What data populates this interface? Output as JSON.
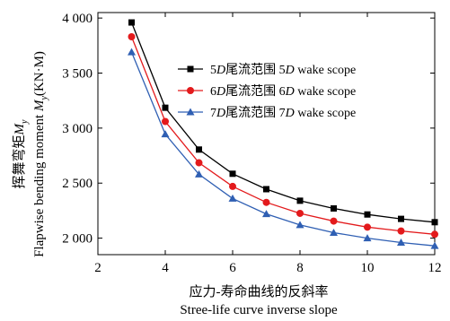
{
  "chart_data": {
    "type": "line",
    "xlabel_cn": "应力-寿命曲线的反斜率",
    "xlabel_en": "Stree-life curve inverse slope",
    "ylabel_cn": "挥舞弯矩",
    "ylabel_cn_symbol": "M",
    "ylabel_cn_symbol_sub": "y",
    "ylabel_en": "Flapwise bending moment ",
    "ylabel_en_symbol": "M",
    "ylabel_en_symbol_sub": "y",
    "ylabel_unit": "(KN·M)",
    "xlim": [
      2,
      12
    ],
    "ylim": [
      1850,
      4050
    ],
    "xticks": [
      2,
      4,
      6,
      8,
      10,
      12
    ],
    "xtick_labels": [
      "2",
      "4",
      "6",
      "8",
      "10",
      "12"
    ],
    "yticks": [
      2000,
      2500,
      3000,
      3500,
      4000
    ],
    "ytick_labels": [
      "2 000",
      "2 500",
      "3 000",
      "3 500",
      "4 000"
    ],
    "x": [
      3,
      4,
      5,
      6,
      7,
      8,
      9,
      10,
      11,
      12
    ],
    "series": [
      {
        "name": "5D尾流范围 5D wake scope",
        "label_lead": "5",
        "label_italic1": "D",
        "label_mid": "尾流范围 5",
        "label_italic2": "D",
        "label_tail": " wake scope",
        "marker": "square",
        "color": "#000000",
        "values": [
          3960,
          3185,
          2805,
          2585,
          2445,
          2340,
          2270,
          2215,
          2175,
          2145
        ]
      },
      {
        "name": "6D尾流范围 6D wake scope",
        "label_lead": "6",
        "label_italic1": "D",
        "label_mid": "尾流范围 6",
        "label_italic2": "D",
        "label_tail": " wake scope",
        "marker": "circle",
        "color": "#e31a1c",
        "values": [
          3830,
          3060,
          2685,
          2470,
          2325,
          2225,
          2155,
          2100,
          2065,
          2035
        ]
      },
      {
        "name": "7D尾流范围 7D wake scope",
        "label_lead": "7",
        "label_italic1": "D",
        "label_mid": "尾流范围 7",
        "label_italic2": "D",
        "label_tail": " wake scope",
        "marker": "triangle",
        "color": "#2f5fb3",
        "values": [
          3690,
          2945,
          2580,
          2360,
          2220,
          2120,
          2050,
          2000,
          1960,
          1930
        ]
      }
    ],
    "grid": false,
    "legend_position": "top-right"
  }
}
